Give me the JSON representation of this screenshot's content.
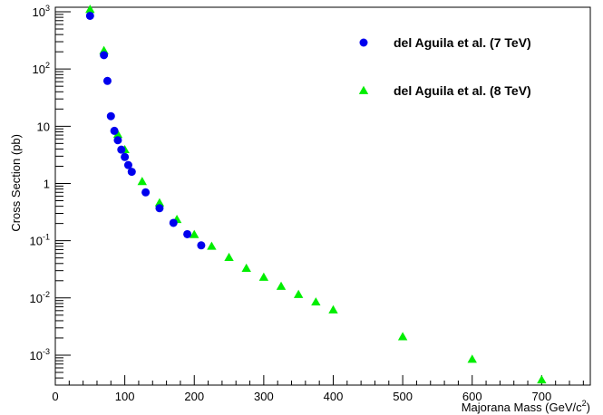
{
  "chart_data": {
    "type": "scatter",
    "xlabel": "Majorana Mass (GeV/c",
    "xlabel_sup": "2",
    "xlabel_close": ")",
    "ylabel": "Cross Section (pb)",
    "xlim": [
      0,
      770
    ],
    "ylim": [
      0.0003,
      1200
    ],
    "yscale": "log",
    "grid": false,
    "legend_position": "top-right",
    "x_ticks": [
      0,
      100,
      200,
      300,
      400,
      500,
      600,
      700
    ],
    "y_ticks": [
      {
        "value": 1000,
        "base": "10",
        "exp": "3"
      },
      {
        "value": 100,
        "base": "10",
        "exp": "2"
      },
      {
        "value": 10,
        "base": "10",
        "exp": ""
      },
      {
        "value": 1,
        "base": "1",
        "exp": ""
      },
      {
        "value": 0.1,
        "base": "10",
        "exp": "-1"
      },
      {
        "value": 0.01,
        "base": "10",
        "exp": "-2"
      },
      {
        "value": 0.001,
        "base": "10",
        "exp": "-3"
      }
    ],
    "series": [
      {
        "name": "del Aguila et al. (7 TeV)",
        "marker": "circle",
        "color": "#0000ee",
        "points": [
          [
            50,
            850
          ],
          [
            70,
            175
          ],
          [
            75,
            62
          ],
          [
            80,
            15
          ],
          [
            85,
            8.3
          ],
          [
            90,
            5.7
          ],
          [
            95,
            3.9
          ],
          [
            100,
            2.9
          ],
          [
            105,
            2.1
          ],
          [
            110,
            1.6
          ],
          [
            130,
            0.7
          ],
          [
            150,
            0.37
          ],
          [
            170,
            0.205
          ],
          [
            190,
            0.13
          ],
          [
            210,
            0.083
          ]
        ]
      },
      {
        "name": "del Aguila et al. (8 TeV)",
        "marker": "triangle",
        "color": "#00ee00",
        "points": [
          [
            50,
            1100
          ],
          [
            70,
            210
          ],
          [
            90,
            7.2
          ],
          [
            100,
            3.9
          ],
          [
            125,
            1.08
          ],
          [
            150,
            0.46
          ],
          [
            175,
            0.235
          ],
          [
            200,
            0.128
          ],
          [
            225,
            0.08
          ],
          [
            250,
            0.051
          ],
          [
            275,
            0.033
          ],
          [
            300,
            0.023
          ],
          [
            325,
            0.016
          ],
          [
            350,
            0.0115
          ],
          [
            375,
            0.0085
          ],
          [
            400,
            0.0062
          ],
          [
            500,
            0.0021
          ],
          [
            600,
            0.00085
          ],
          [
            700,
            0.00037
          ]
        ]
      }
    ]
  }
}
